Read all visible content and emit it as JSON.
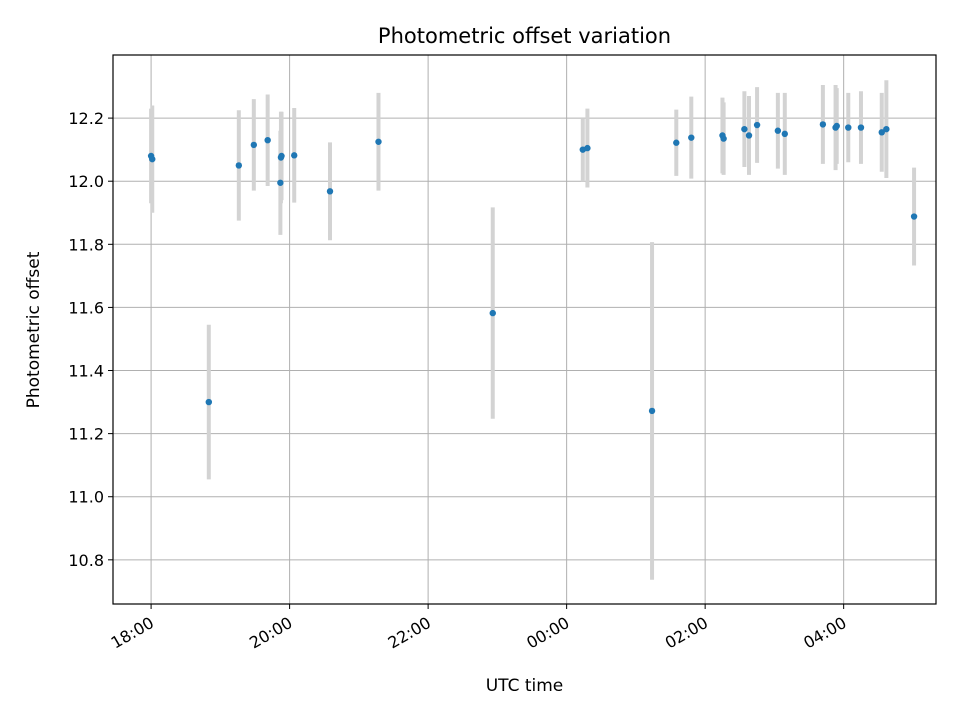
{
  "chart_data": {
    "type": "scatter",
    "title": "Photometric offset variation",
    "xlabel": "UTC time",
    "ylabel": "Photometric offset",
    "x_ticks": [
      {
        "label": "18:00",
        "value": 0
      },
      {
        "label": "20:00",
        "value": 120
      },
      {
        "label": "22:00",
        "value": 240
      },
      {
        "label": "00:00",
        "value": 360
      },
      {
        "label": "02:00",
        "value": 480
      },
      {
        "label": "04:00",
        "value": 600
      }
    ],
    "xlim": [
      -33,
      680
    ],
    "ylim": [
      10.66,
      12.4
    ],
    "y_ticks": [
      "10.8",
      "11.0",
      "11.2",
      "11.4",
      "11.6",
      "11.8",
      "12.0",
      "12.2"
    ],
    "grid": true,
    "colors": {
      "point": "#1f77b4",
      "errorbar": "#d3d3d3",
      "grid": "#b0b0b0"
    },
    "points": [
      {
        "t": 0,
        "y": 12.08,
        "err": 0.15
      },
      {
        "t": 1,
        "y": 12.07,
        "err": 0.17
      },
      {
        "t": 50,
        "y": 11.3,
        "err": 0.245
      },
      {
        "t": 76,
        "y": 12.05,
        "err": 0.175
      },
      {
        "t": 89,
        "y": 12.115,
        "err": 0.145
      },
      {
        "t": 101,
        "y": 12.13,
        "err": 0.145
      },
      {
        "t": 112,
        "y": 11.995,
        "err": 0.165
      },
      {
        "t": 112.5,
        "y": 12.075,
        "err": 0.145
      },
      {
        "t": 113,
        "y": 12.08,
        "err": 0.14
      },
      {
        "t": 124,
        "y": 12.082,
        "err": 0.15
      },
      {
        "t": 155,
        "y": 11.968,
        "err": 0.155
      },
      {
        "t": 197,
        "y": 12.125,
        "err": 0.155
      },
      {
        "t": 296,
        "y": 11.582,
        "err": 0.335
      },
      {
        "t": 374,
        "y": 12.1,
        "err": 0.1
      },
      {
        "t": 378,
        "y": 12.105,
        "err": 0.125
      },
      {
        "t": 434,
        "y": 11.272,
        "err": 0.535
      },
      {
        "t": 455,
        "y": 12.122,
        "err": 0.105
      },
      {
        "t": 468,
        "y": 12.138,
        "err": 0.13
      },
      {
        "t": 495,
        "y": 12.145,
        "err": 0.12
      },
      {
        "t": 496,
        "y": 12.135,
        "err": 0.115
      },
      {
        "t": 514,
        "y": 12.165,
        "err": 0.12
      },
      {
        "t": 518,
        "y": 12.145,
        "err": 0.125
      },
      {
        "t": 525,
        "y": 12.178,
        "err": 0.12
      },
      {
        "t": 543,
        "y": 12.16,
        "err": 0.12
      },
      {
        "t": 549,
        "y": 12.15,
        "err": 0.13
      },
      {
        "t": 582,
        "y": 12.18,
        "err": 0.125
      },
      {
        "t": 593,
        "y": 12.17,
        "err": 0.135
      },
      {
        "t": 594,
        "y": 12.175,
        "err": 0.12
      },
      {
        "t": 604,
        "y": 12.17,
        "err": 0.11
      },
      {
        "t": 615,
        "y": 12.17,
        "err": 0.115
      },
      {
        "t": 633,
        "y": 12.155,
        "err": 0.125
      },
      {
        "t": 637,
        "y": 12.165,
        "err": 0.155
      },
      {
        "t": 661,
        "y": 11.888,
        "err": 0.155
      }
    ]
  }
}
